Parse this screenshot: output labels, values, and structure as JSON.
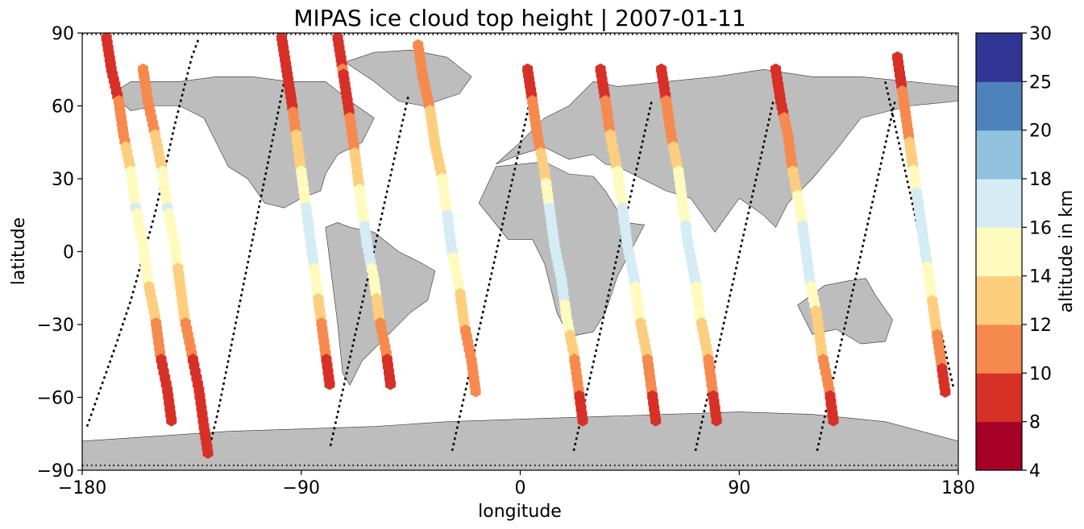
{
  "chart_data": {
    "type": "scatter",
    "title": "MIPAS ice cloud top height | 2007-01-11",
    "xlabel": "longitude",
    "ylabel": "latitude",
    "xlim": [
      -180,
      180
    ],
    "ylim": [
      -90,
      90
    ],
    "xticks": [
      "−180",
      "−90",
      "0",
      "90",
      "180"
    ],
    "yticks": [
      "90",
      "60",
      "30",
      "0",
      "−30",
      "−60",
      "−90"
    ],
    "xtick_values": [
      -180,
      -90,
      0,
      90,
      180
    ],
    "ytick_values": [
      90,
      60,
      30,
      0,
      -30,
      -60,
      -90
    ],
    "grid": false,
    "colorbar": {
      "label": "altitude in km",
      "boundaries": [
        4,
        8,
        10,
        12,
        14,
        16,
        18,
        20,
        25,
        30
      ],
      "tick_labels": [
        "4",
        "8",
        "10",
        "12",
        "14",
        "16",
        "18",
        "20",
        "25",
        "30"
      ],
      "colors": [
        "#a50026",
        "#d73027",
        "#f46d43",
        "#fdae61",
        "#fee090",
        "#ffffbf",
        "#e0f3f8",
        "#abd9e9",
        "#74add1",
        "#4575b4",
        "#313695"
      ],
      "bin_colors": [
        "#a50026",
        "#d73027",
        "#f68a4e",
        "#fdce7e",
        "#fffbbf",
        "#d5ecf4",
        "#91c2de",
        "#4e82bb",
        "#313695"
      ]
    },
    "tracks": [
      {
        "lon": [
          -170,
          -168,
          -165,
          -163,
          -160,
          -158,
          -155,
          -153,
          -150,
          -148,
          -145,
          -143
        ],
        "lat": [
          88,
          75,
          62,
          48,
          33,
          18,
          3,
          -12,
          -27,
          -42,
          -57,
          -72
        ],
        "alt": [
          9,
          8,
          10,
          11,
          14,
          16,
          15,
          14,
          12,
          10,
          8,
          8
        ]
      },
      {
        "lon": [
          -155,
          -153,
          -150,
          -147,
          -145,
          -142,
          -140,
          -138,
          -135,
          -132,
          -130,
          -128
        ],
        "lat": [
          75,
          62,
          48,
          33,
          18,
          3,
          -12,
          -27,
          -42,
          -57,
          -72,
          -85
        ],
        "alt": [
          11,
          11,
          12,
          14,
          16,
          15,
          13,
          12,
          10,
          8,
          8,
          8
        ]
      },
      {
        "lon": [
          -98,
          -96,
          -94,
          -92,
          -90,
          -88,
          -86,
          -84,
          -82,
          -80,
          -78
        ],
        "lat": [
          88,
          75,
          62,
          48,
          33,
          18,
          3,
          -12,
          -27,
          -42,
          -57
        ],
        "alt": [
          8,
          8,
          9,
          12,
          14,
          16,
          17,
          15,
          12,
          10,
          8
        ]
      },
      {
        "lon": [
          -75,
          -73,
          -71,
          -69,
          -67,
          -65,
          -63,
          -60,
          -58,
          -55,
          -53
        ],
        "lat": [
          88,
          75,
          62,
          48,
          33,
          18,
          3,
          -12,
          -27,
          -42,
          -57
        ],
        "alt": [
          9,
          10,
          9,
          11,
          13,
          15,
          17,
          15,
          12,
          10,
          9
        ]
      },
      {
        "lon": [
          -42,
          -40,
          -37,
          -35,
          -32,
          -30,
          -28,
          -25,
          -23,
          -20,
          -18
        ],
        "lat": [
          85,
          72,
          58,
          44,
          30,
          15,
          0,
          -15,
          -30,
          -45,
          -60
        ],
        "alt": [
          11,
          11,
          12,
          12,
          14,
          16,
          16,
          14,
          12,
          11,
          10
        ]
      },
      {
        "lon": [
          3,
          5,
          7,
          10,
          12,
          14,
          17,
          19,
          22,
          24,
          26
        ],
        "lat": [
          75,
          62,
          48,
          33,
          18,
          3,
          -12,
          -27,
          -42,
          -57,
          -72
        ],
        "alt": [
          9,
          10,
          11,
          13,
          16,
          17,
          17,
          15,
          12,
          10,
          8
        ]
      },
      {
        "lon": [
          33,
          35,
          37,
          40,
          42,
          44,
          47,
          49,
          52,
          54,
          56
        ],
        "lat": [
          75,
          62,
          48,
          33,
          18,
          3,
          -12,
          -27,
          -42,
          -57,
          -72
        ],
        "alt": [
          9,
          10,
          12,
          14,
          16,
          17,
          16,
          14,
          12,
          10,
          8
        ]
      },
      {
        "lon": [
          58,
          60,
          62,
          65,
          67,
          69,
          72,
          74,
          77,
          79,
          81
        ],
        "lat": [
          75,
          62,
          48,
          33,
          18,
          3,
          -12,
          -27,
          -42,
          -57,
          -72
        ],
        "alt": [
          9,
          10,
          11,
          14,
          15,
          17,
          16,
          14,
          12,
          10,
          8
        ]
      },
      {
        "lon": [
          105,
          107,
          110,
          112,
          115,
          117,
          119,
          122,
          124,
          127,
          129
        ],
        "lat": [
          75,
          62,
          48,
          33,
          18,
          3,
          -12,
          -27,
          -42,
          -57,
          -72
        ],
        "alt": [
          8,
          9,
          11,
          12,
          15,
          17,
          16,
          13,
          12,
          10,
          9
        ]
      },
      {
        "lon": [
          155,
          157,
          159,
          161,
          163,
          165,
          167,
          169,
          171,
          173,
          175
        ],
        "lat": [
          80,
          66,
          52,
          38,
          24,
          10,
          -4,
          -18,
          -32,
          -46,
          -60
        ],
        "alt": [
          9,
          10,
          11,
          13,
          16,
          17,
          16,
          14,
          12,
          10,
          9
        ]
      }
    ],
    "orbit_lines": [
      {
        "lon": [
          -178,
          -172,
          -166,
          -160,
          -155,
          -150,
          -146,
          -142,
          -138,
          -135,
          -132
        ],
        "lat": [
          -72,
          -55,
          -38,
          -20,
          -2,
          16,
          34,
          52,
          68,
          80,
          88
        ]
      },
      {
        "lon": [
          -128,
          -124,
          -120,
          -116,
          -112,
          -108,
          -104,
          -100,
          -96
        ],
        "lat": [
          -82,
          -65,
          -45,
          -25,
          -5,
          15,
          35,
          55,
          75
        ]
      },
      {
        "lon": [
          -78,
          -74,
          -70,
          -66,
          -62,
          -58,
          -54,
          -50,
          -46
        ],
        "lat": [
          -80,
          -62,
          -44,
          -26,
          -8,
          10,
          28,
          46,
          64
        ]
      },
      {
        "lon": [
          -28,
          -24,
          -20,
          -16,
          -12,
          -8,
          -4,
          0,
          4
        ],
        "lat": [
          -82,
          -64,
          -46,
          -28,
          -10,
          8,
          26,
          44,
          62
        ]
      },
      {
        "lon": [
          22,
          26,
          30,
          34,
          38,
          42,
          46,
          50,
          54
        ],
        "lat": [
          -82,
          -64,
          -46,
          -28,
          -10,
          8,
          26,
          44,
          62
        ]
      },
      {
        "lon": [
          72,
          76,
          80,
          84,
          88,
          92,
          96,
          100,
          104
        ],
        "lat": [
          -82,
          -64,
          -46,
          -28,
          -10,
          8,
          26,
          44,
          62
        ]
      },
      {
        "lon": [
          122,
          126,
          130,
          134,
          138,
          142,
          146,
          150,
          154
        ],
        "lat": [
          -82,
          -64,
          -46,
          -28,
          -10,
          8,
          26,
          44,
          62
        ]
      },
      {
        "lon": [
          150,
          154,
          158,
          162,
          166,
          170,
          174,
          178
        ],
        "lat": [
          70,
          52,
          34,
          16,
          -2,
          -20,
          -38,
          -56
        ]
      }
    ],
    "polar_dots": [
      {
        "lat": 89.5
      },
      {
        "lat": -88
      }
    ],
    "land": [
      {
        "name": "north-america",
        "lon": [
          -168,
          -160,
          -140,
          -125,
          -110,
          -95,
          -80,
          -70,
          -60,
          -65,
          -75,
          -80,
          -82,
          -90,
          -97,
          -105,
          -112,
          -120,
          -125,
          -130,
          -140,
          -150,
          -160,
          -168
        ],
        "lat": [
          65,
          70,
          70,
          72,
          72,
          70,
          70,
          62,
          55,
          45,
          40,
          32,
          25,
          22,
          18,
          20,
          30,
          35,
          45,
          55,
          60,
          60,
          58,
          65
        ]
      },
      {
        "name": "greenland",
        "lon": [
          -72,
          -60,
          -45,
          -30,
          -20,
          -25,
          -40,
          -50,
          -60,
          -72
        ],
        "lat": [
          78,
          82,
          83,
          80,
          72,
          65,
          60,
          62,
          70,
          78
        ]
      },
      {
        "name": "south-america",
        "lon": [
          -80,
          -75,
          -70,
          -60,
          -50,
          -40,
          -35,
          -38,
          -45,
          -55,
          -65,
          -70,
          -73,
          -75,
          -80
        ],
        "lat": [
          10,
          12,
          10,
          8,
          0,
          -5,
          -8,
          -20,
          -25,
          -35,
          -45,
          -55,
          -50,
          -30,
          10
        ]
      },
      {
        "name": "eurasia",
        "lon": [
          -10,
          0,
          10,
          20,
          30,
          40,
          60,
          80,
          100,
          120,
          140,
          160,
          180,
          180,
          160,
          140,
          130,
          120,
          110,
          105,
          100,
          90,
          80,
          70,
          60,
          50,
          40,
          35,
          30,
          20,
          10,
          0,
          -10
        ],
        "lat": [
          36,
          45,
          55,
          60,
          70,
          68,
          70,
          72,
          75,
          72,
          72,
          70,
          68,
          62,
          60,
          55,
          42,
          30,
          20,
          10,
          15,
          22,
          8,
          22,
          25,
          30,
          35,
          36,
          40,
          38,
          43,
          40,
          36
        ]
      },
      {
        "name": "africa",
        "lon": [
          -17,
          -10,
          0,
          10,
          20,
          30,
          35,
          43,
          51,
          40,
          35,
          30,
          20,
          15,
          10,
          5,
          -5,
          -17
        ],
        "lat": [
          20,
          35,
          36,
          37,
          32,
          31,
          25,
          12,
          11,
          -10,
          -25,
          -33,
          -35,
          -25,
          -5,
          5,
          5,
          20
        ]
      },
      {
        "name": "australia",
        "lon": [
          114,
          125,
          135,
          142,
          146,
          153,
          150,
          140,
          130,
          120,
          114
        ],
        "lat": [
          -22,
          -14,
          -12,
          -11,
          -18,
          -28,
          -37,
          -38,
          -32,
          -34,
          -22
        ]
      },
      {
        "name": "antarctica",
        "lon": [
          -180,
          -150,
          -120,
          -90,
          -60,
          -30,
          0,
          30,
          60,
          90,
          120,
          150,
          180,
          180,
          -180
        ],
        "lat": [
          -78,
          -76,
          -74,
          -73,
          -72,
          -70,
          -69,
          -68,
          -67,
          -66,
          -67,
          -70,
          -78,
          -90,
          -90
        ]
      }
    ]
  }
}
